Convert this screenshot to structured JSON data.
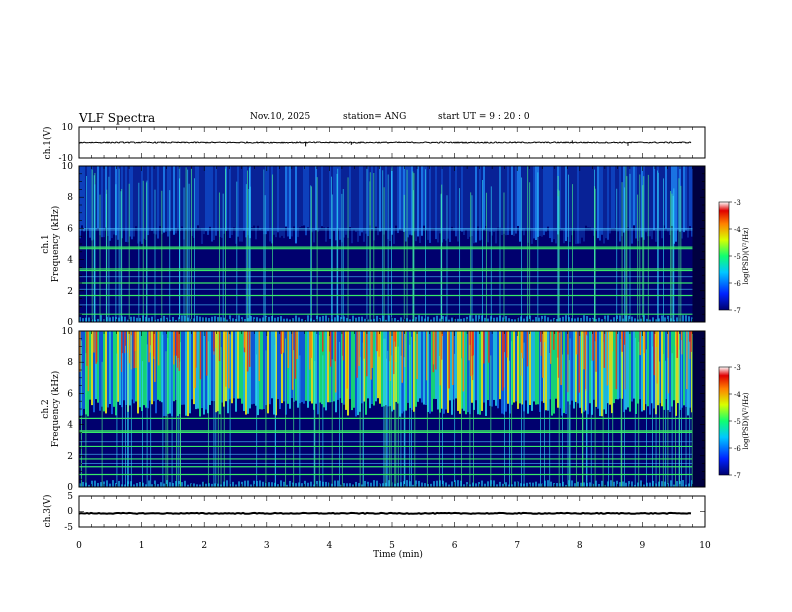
{
  "header": {
    "title": "VLF Spectra",
    "date": "Nov.10, 2025",
    "station": "station= ANG",
    "start_time": "start  UT =   9  : 20 : 0"
  },
  "colors": {
    "background_spec": "#00006e",
    "waveform": "#000000",
    "horizontal_line_green": "#38e86a",
    "horizontal_line_cyan": "#4bc6ff"
  },
  "chart_data": [
    {
      "type": "line",
      "name": "ch1-waveform",
      "ylabel": "ch.1(V)",
      "ylim": [
        -10,
        10
      ],
      "y_ticks": [
        "10",
        "-10"
      ],
      "x": [
        0,
        10
      ],
      "baseline": 0,
      "noise_amplitude": 0.4,
      "spikes": [
        {
          "t": 3.62,
          "v": -2.5
        },
        {
          "t": 4.35,
          "v": -1.5
        },
        {
          "t": 7.88,
          "v": 1.4
        },
        {
          "t": 8.77,
          "v": -2.2
        }
      ]
    },
    {
      "type": "heatmap",
      "name": "ch1-spectrogram",
      "ylabel_top": "ch.1",
      "ylabel": "Frequency (kHz)",
      "ylim": [
        0,
        10
      ],
      "y_ticks": [
        "0",
        "2",
        "4",
        "6",
        "8",
        "10"
      ],
      "high_band_kHz": [
        5,
        10
      ],
      "strong_lines_kHz": [
        0.5,
        1.7,
        2.5,
        3.3,
        3.4,
        4.7,
        4.8
      ],
      "weak_lines_kHz": [
        1.1,
        2.1,
        2.9,
        5.9,
        6.0
      ],
      "colorbar": {
        "label": "log(PSD)(V²/Hz)",
        "ticks": [
          "-3",
          "-4",
          "-5",
          "-6",
          "-7"
        ],
        "range": [
          -7,
          -3
        ]
      }
    },
    {
      "type": "heatmap",
      "name": "ch2-spectrogram",
      "ylabel_top": "ch.2",
      "ylabel": "Frequency (kHz)",
      "ylim": [
        0,
        10
      ],
      "y_ticks": [
        "0",
        "2",
        "4",
        "6",
        "8",
        "10"
      ],
      "high_band_kHz": [
        4.5,
        10
      ],
      "strong_lines_kHz": [
        0.8,
        1.3,
        1.8,
        2.6,
        3.5,
        3.6,
        4.4
      ],
      "weak_lines_kHz": [
        1.5,
        2.1,
        2.9
      ],
      "colorbar": {
        "label": "log(PSD)(V²/Hz)",
        "ticks": [
          "-3",
          "-4",
          "-5",
          "-6",
          "-7"
        ],
        "range": [
          -7,
          -3
        ]
      }
    },
    {
      "type": "line",
      "name": "ch3-waveform",
      "ylabel": "ch.3(V)",
      "ylim": [
        -5,
        5
      ],
      "y_ticks": [
        "5",
        "0",
        "-5"
      ],
      "x": [
        0,
        9.8
      ],
      "baseline": -0.6,
      "noise_amplitude": 0.15
    }
  ],
  "xaxis": {
    "label": "Time (min)",
    "range": [
      0,
      10
    ],
    "ticks": [
      "0",
      "1",
      "2",
      "3",
      "4",
      "5",
      "6",
      "7",
      "8",
      "9",
      "10"
    ],
    "data_end_min": 9.8
  }
}
